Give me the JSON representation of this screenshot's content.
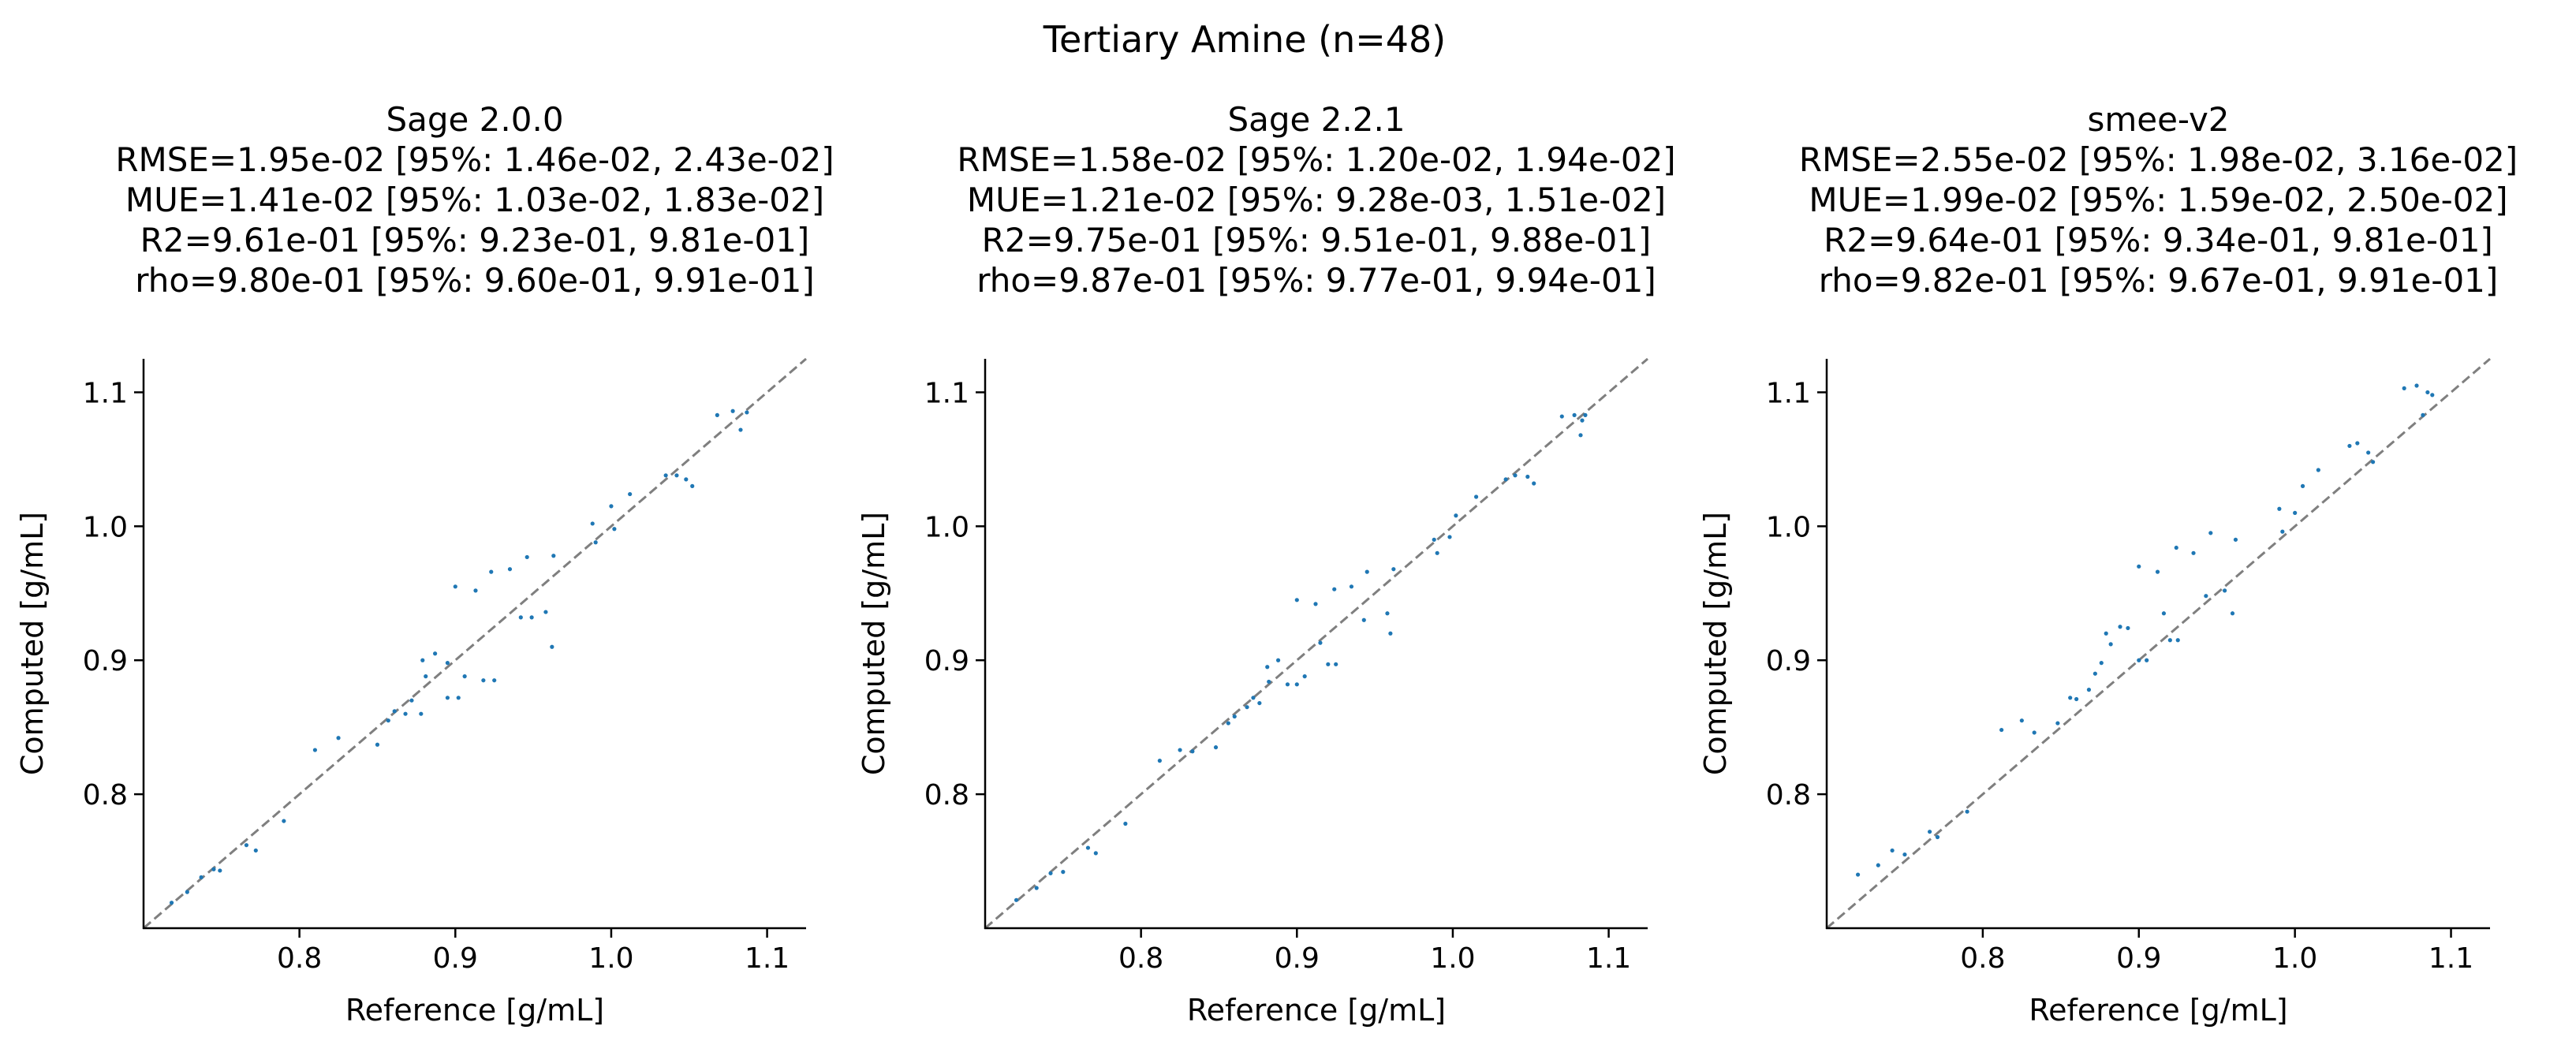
{
  "figure": {
    "suptitle": "Tertiary Amine (n=48)"
  },
  "chart_data": [
    {
      "type": "scatter",
      "title": [
        "Sage 2.0.0",
        "RMSE=1.95e-02 [95%: 1.46e-02, 2.43e-02]",
        "MUE=1.41e-02 [95%: 1.03e-02, 1.83e-02]",
        "R2=9.61e-01 [95%: 9.23e-01, 9.81e-01]",
        "rho=9.80e-01 [95%: 9.60e-01, 9.91e-01]"
      ],
      "xlabel": "Reference [g/mL]",
      "ylabel": "Computed [g/mL]",
      "xlim": [
        0.7,
        1.125
      ],
      "ylim": [
        0.7,
        1.125
      ],
      "xticks": [
        "0.8",
        "0.9",
        "1.0",
        "1.1"
      ],
      "yticks": [
        "0.8",
        "0.9",
        "1.0",
        "1.1"
      ],
      "identity_line": true,
      "marker_color": "#1f77b4",
      "points": [
        [
          0.718,
          0.719
        ],
        [
          0.728,
          0.727
        ],
        [
          0.737,
          0.738
        ],
        [
          0.745,
          0.744
        ],
        [
          0.749,
          0.743
        ],
        [
          0.766,
          0.762
        ],
        [
          0.772,
          0.758
        ],
        [
          0.79,
          0.78
        ],
        [
          0.81,
          0.833
        ],
        [
          0.825,
          0.842
        ],
        [
          0.85,
          0.837
        ],
        [
          0.857,
          0.855
        ],
        [
          0.861,
          0.862
        ],
        [
          0.868,
          0.86
        ],
        [
          0.872,
          0.87
        ],
        [
          0.878,
          0.86
        ],
        [
          0.881,
          0.888
        ],
        [
          0.879,
          0.9
        ],
        [
          0.887,
          0.905
        ],
        [
          0.895,
          0.898
        ],
        [
          0.9,
          0.955
        ],
        [
          0.895,
          0.872
        ],
        [
          0.902,
          0.872
        ],
        [
          0.906,
          0.888
        ],
        [
          0.913,
          0.952
        ],
        [
          0.918,
          0.885
        ],
        [
          0.925,
          0.885
        ],
        [
          0.923,
          0.966
        ],
        [
          0.935,
          0.968
        ],
        [
          0.942,
          0.932
        ],
        [
          0.949,
          0.932
        ],
        [
          0.946,
          0.977
        ],
        [
          0.958,
          0.936
        ],
        [
          0.962,
          0.91
        ],
        [
          0.963,
          0.978
        ],
        [
          0.988,
          1.002
        ],
        [
          0.99,
          0.988
        ],
        [
          1.0,
          1.015
        ],
        [
          1.002,
          0.998
        ],
        [
          1.012,
          1.024
        ],
        [
          1.035,
          1.038
        ],
        [
          1.042,
          1.038
        ],
        [
          1.048,
          1.035
        ],
        [
          1.052,
          1.03
        ],
        [
          1.068,
          1.083
        ],
        [
          1.078,
          1.086
        ],
        [
          1.083,
          1.072
        ],
        [
          1.087,
          1.085
        ]
      ]
    },
    {
      "type": "scatter",
      "title": [
        "Sage 2.2.1",
        "RMSE=1.58e-02 [95%: 1.20e-02, 1.94e-02]",
        "MUE=1.21e-02 [95%: 9.28e-03, 1.51e-02]",
        "R2=9.75e-01 [95%: 9.51e-01, 9.88e-01]",
        "rho=9.87e-01 [95%: 9.77e-01, 9.94e-01]"
      ],
      "xlabel": "Reference [g/mL]",
      "ylabel": "Computed [g/mL]",
      "xlim": [
        0.7,
        1.125
      ],
      "ylim": [
        0.7,
        1.125
      ],
      "xticks": [
        "0.8",
        "0.9",
        "1.0",
        "1.1"
      ],
      "yticks": [
        "0.8",
        "0.9",
        "1.0",
        "1.1"
      ],
      "identity_line": true,
      "marker_color": "#1f77b4",
      "points": [
        [
          0.72,
          0.721
        ],
        [
          0.733,
          0.73
        ],
        [
          0.742,
          0.741
        ],
        [
          0.75,
          0.742
        ],
        [
          0.766,
          0.76
        ],
        [
          0.771,
          0.756
        ],
        [
          0.79,
          0.778
        ],
        [
          0.812,
          0.825
        ],
        [
          0.825,
          0.833
        ],
        [
          0.833,
          0.832
        ],
        [
          0.848,
          0.835
        ],
        [
          0.856,
          0.853
        ],
        [
          0.86,
          0.858
        ],
        [
          0.868,
          0.865
        ],
        [
          0.872,
          0.872
        ],
        [
          0.876,
          0.868
        ],
        [
          0.882,
          0.884
        ],
        [
          0.881,
          0.895
        ],
        [
          0.888,
          0.9
        ],
        [
          0.894,
          0.882
        ],
        [
          0.9,
          0.882
        ],
        [
          0.9,
          0.945
        ],
        [
          0.905,
          0.888
        ],
        [
          0.912,
          0.942
        ],
        [
          0.915,
          0.913
        ],
        [
          0.92,
          0.897
        ],
        [
          0.925,
          0.897
        ],
        [
          0.924,
          0.953
        ],
        [
          0.935,
          0.955
        ],
        [
          0.943,
          0.93
        ],
        [
          0.945,
          0.966
        ],
        [
          0.958,
          0.935
        ],
        [
          0.96,
          0.92
        ],
        [
          0.962,
          0.968
        ],
        [
          0.988,
          0.99
        ],
        [
          0.99,
          0.98
        ],
        [
          0.998,
          0.992
        ],
        [
          1.002,
          1.008
        ],
        [
          1.015,
          1.022
        ],
        [
          1.034,
          1.035
        ],
        [
          1.04,
          1.038
        ],
        [
          1.048,
          1.037
        ],
        [
          1.052,
          1.032
        ],
        [
          1.07,
          1.082
        ],
        [
          1.078,
          1.083
        ],
        [
          1.082,
          1.068
        ],
        [
          1.085,
          1.083
        ],
        [
          1.083,
          1.079
        ]
      ]
    },
    {
      "type": "scatter",
      "title": [
        "smee-v2",
        "RMSE=2.55e-02 [95%: 1.98e-02, 3.16e-02]",
        "MUE=1.99e-02 [95%: 1.59e-02, 2.50e-02]",
        "R2=9.64e-01 [95%: 9.34e-01, 9.81e-01]",
        "rho=9.82e-01 [95%: 9.67e-01, 9.91e-01]"
      ],
      "xlabel": "Reference [g/mL]",
      "ylabel": "Computed [g/mL]",
      "xlim": [
        0.7,
        1.125
      ],
      "ylim": [
        0.7,
        1.125
      ],
      "xticks": [
        "0.8",
        "0.9",
        "1.0",
        "1.1"
      ],
      "yticks": [
        "0.8",
        "0.9",
        "1.0",
        "1.1"
      ],
      "identity_line": true,
      "marker_color": "#1f77b4",
      "points": [
        [
          0.72,
          0.74
        ],
        [
          0.733,
          0.747
        ],
        [
          0.742,
          0.758
        ],
        [
          0.75,
          0.755
        ],
        [
          0.766,
          0.772
        ],
        [
          0.771,
          0.768
        ],
        [
          0.79,
          0.787
        ],
        [
          0.812,
          0.848
        ],
        [
          0.825,
          0.855
        ],
        [
          0.833,
          0.846
        ],
        [
          0.848,
          0.853
        ],
        [
          0.856,
          0.872
        ],
        [
          0.86,
          0.871
        ],
        [
          0.868,
          0.878
        ],
        [
          0.872,
          0.89
        ],
        [
          0.876,
          0.898
        ],
        [
          0.879,
          0.92
        ],
        [
          0.882,
          0.912
        ],
        [
          0.888,
          0.925
        ],
        [
          0.893,
          0.924
        ],
        [
          0.9,
          0.97
        ],
        [
          0.9,
          0.9
        ],
        [
          0.905,
          0.9
        ],
        [
          0.912,
          0.966
        ],
        [
          0.916,
          0.935
        ],
        [
          0.92,
          0.915
        ],
        [
          0.925,
          0.915
        ],
        [
          0.924,
          0.984
        ],
        [
          0.935,
          0.98
        ],
        [
          0.943,
          0.948
        ],
        [
          0.946,
          0.995
        ],
        [
          0.955,
          0.952
        ],
        [
          0.96,
          0.935
        ],
        [
          0.962,
          0.99
        ],
        [
          0.99,
          1.013
        ],
        [
          0.992,
          0.996
        ],
        [
          1.0,
          1.01
        ],
        [
          1.005,
          1.03
        ],
        [
          1.015,
          1.042
        ],
        [
          1.035,
          1.06
        ],
        [
          1.04,
          1.062
        ],
        [
          1.047,
          1.055
        ],
        [
          1.05,
          1.048
        ],
        [
          1.07,
          1.103
        ],
        [
          1.078,
          1.105
        ],
        [
          1.082,
          1.083
        ],
        [
          1.085,
          1.1
        ],
        [
          1.088,
          1.098
        ]
      ]
    }
  ]
}
